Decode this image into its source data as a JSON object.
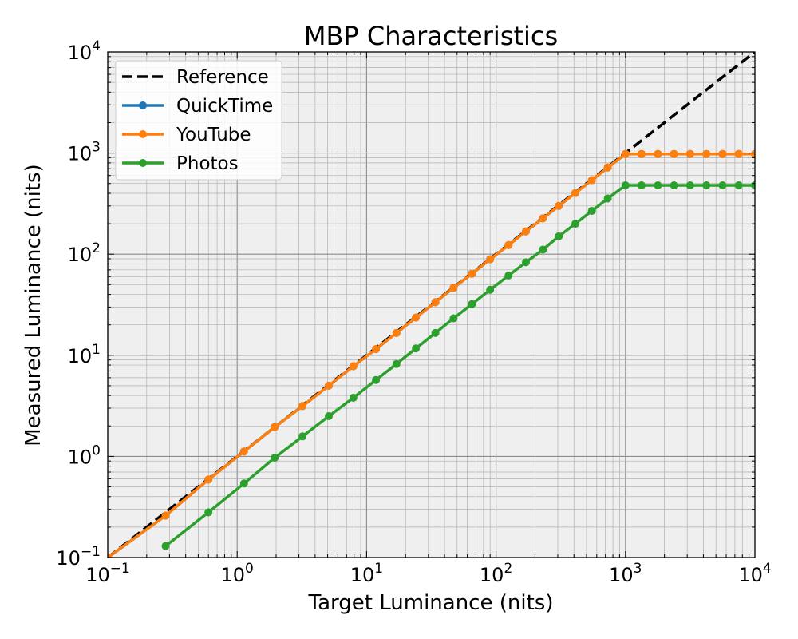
{
  "chart_data": {
    "type": "line",
    "title": "MBP Characteristics",
    "xlabel": "Target Luminance (nits)",
    "ylabel": "Measured Luminance (nits)",
    "xscale": "log",
    "yscale": "log",
    "xlim": [
      0.1,
      10000
    ],
    "ylim": [
      0.1,
      10000
    ],
    "xticks": [
      {
        "base": "10",
        "exp": "−1"
      },
      {
        "base": "10",
        "exp": "0"
      },
      {
        "base": "10",
        "exp": "1"
      },
      {
        "base": "10",
        "exp": "2"
      },
      {
        "base": "10",
        "exp": "3"
      },
      {
        "base": "10",
        "exp": "4"
      }
    ],
    "yticks": [
      {
        "base": "10",
        "exp": "−1"
      },
      {
        "base": "10",
        "exp": "0"
      },
      {
        "base": "10",
        "exp": "1"
      },
      {
        "base": "10",
        "exp": "2"
      },
      {
        "base": "10",
        "exp": "3"
      },
      {
        "base": "10",
        "exp": "4"
      }
    ],
    "grid": "major and minor",
    "background": "#efefef",
    "legend_position": "top-left",
    "series": [
      {
        "name": "Reference",
        "color": "#000000",
        "style": "dashed",
        "x": [
          0.1,
          10000
        ],
        "y": [
          0.1,
          10000
        ]
      },
      {
        "name": "QuickTime",
        "color": "#1f77b4",
        "style": "solid-markers",
        "x": [
          0.1,
          0.28,
          0.6,
          1.13,
          1.95,
          3.2,
          5.1,
          7.9,
          11.8,
          17.0,
          24.0,
          34.0,
          47.0,
          65.0,
          90.0,
          125.0,
          170.0,
          230.0,
          305.0,
          410.0,
          550.0,
          730.0,
          1000,
          1330,
          1780,
          2370,
          3160,
          4220,
          5620,
          7500,
          10000
        ],
        "y": [
          0.1,
          0.26,
          0.59,
          1.12,
          1.95,
          3.15,
          5.0,
          7.8,
          11.5,
          16.6,
          23.6,
          33.5,
          46.5,
          64.0,
          89.0,
          123.0,
          168.0,
          226.0,
          300.0,
          403.0,
          540.0,
          720.0,
          980,
          980,
          980,
          980,
          980,
          980,
          980,
          980,
          980
        ]
      },
      {
        "name": "YouTube",
        "color": "#ff7f0e",
        "style": "solid-markers",
        "x": [
          0.1,
          0.28,
          0.6,
          1.13,
          1.95,
          3.2,
          5.1,
          7.9,
          11.8,
          17.0,
          24.0,
          34.0,
          47.0,
          65.0,
          90.0,
          125.0,
          170.0,
          230.0,
          305.0,
          410.0,
          550.0,
          730.0,
          1000,
          1330,
          1780,
          2370,
          3160,
          4220,
          5620,
          7500,
          10000
        ],
        "y": [
          0.1,
          0.26,
          0.59,
          1.12,
          1.95,
          3.15,
          5.0,
          7.8,
          11.5,
          16.6,
          23.6,
          33.5,
          46.5,
          64.0,
          89.0,
          123.0,
          168.0,
          226.0,
          300.0,
          403.0,
          540.0,
          720.0,
          980,
          980,
          980,
          980,
          980,
          980,
          980,
          980,
          980
        ]
      },
      {
        "name": "Photos",
        "color": "#2ca02c",
        "style": "solid-markers",
        "x": [
          0.28,
          0.6,
          1.13,
          1.95,
          3.2,
          5.1,
          7.9,
          11.8,
          17.0,
          24.0,
          34.0,
          47.0,
          65.0,
          90.0,
          125.0,
          170.0,
          230.0,
          305.0,
          410.0,
          550.0,
          730.0,
          1000,
          1330,
          1780,
          2370,
          3160,
          4220,
          5620,
          7500,
          10000
        ],
        "y": [
          0.13,
          0.28,
          0.54,
          0.97,
          1.58,
          2.5,
          3.8,
          5.7,
          8.2,
          11.7,
          16.6,
          23.2,
          32.0,
          44.5,
          61.5,
          83.0,
          111.0,
          150.0,
          200.0,
          268.0,
          355.0,
          480,
          480,
          480,
          480,
          480,
          480,
          480,
          480,
          480
        ]
      }
    ]
  }
}
